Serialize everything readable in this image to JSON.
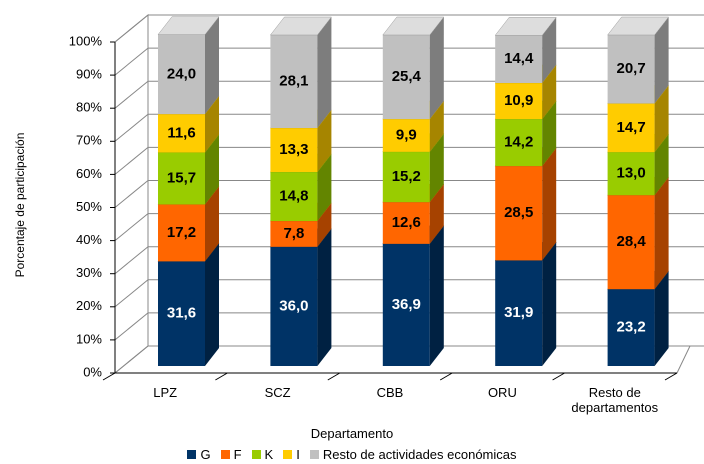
{
  "chart_data": {
    "type": "bar",
    "stacked": true,
    "x_label": "Departamento",
    "y_label": "Porcentaje de participación",
    "categories": [
      "LPZ",
      "SCZ",
      "CBB",
      "ORU",
      "Resto de departamentos"
    ],
    "series": [
      {
        "name": "G",
        "color": "#003366",
        "values": [
          31.6,
          36.0,
          36.9,
          31.9,
          23.2
        ],
        "value_labels": [
          "31,6",
          "36,0",
          "36,9",
          "31,9",
          "23,2"
        ]
      },
      {
        "name": "F",
        "color": "#ff6600",
        "values": [
          17.2,
          7.8,
          12.6,
          28.5,
          28.4
        ],
        "value_labels": [
          "17,2",
          "7,8",
          "12,6",
          "28,5",
          "28,4"
        ]
      },
      {
        "name": "K",
        "color": "#99cc00",
        "values": [
          15.7,
          14.8,
          15.2,
          14.2,
          13.0
        ],
        "value_labels": [
          "15,7",
          "14,8",
          "15,2",
          "14,2",
          "13,0"
        ]
      },
      {
        "name": "I",
        "color": "#ffcc00",
        "values": [
          11.6,
          13.3,
          9.9,
          10.9,
          14.7
        ],
        "value_labels": [
          "11,6",
          "13,3",
          "9,9",
          "10,9",
          "14,7"
        ]
      },
      {
        "name": "Resto de actividades económicas",
        "color": "#c0c0c0",
        "values": [
          24.0,
          28.1,
          25.4,
          14.4,
          20.7
        ],
        "value_labels": [
          "24,0",
          "28,1",
          "25,4",
          "14,4",
          "20,7"
        ]
      }
    ],
    "ylim": [
      0,
      100
    ],
    "yticks": [
      {
        "value": 0,
        "label": "0%"
      },
      {
        "value": 10,
        "label": "10%"
      },
      {
        "value": 20,
        "label": "20%"
      },
      {
        "value": 30,
        "label": "30%"
      },
      {
        "value": 40,
        "label": "40%"
      },
      {
        "value": 50,
        "label": "50%"
      },
      {
        "value": 60,
        "label": "60%"
      },
      {
        "value": 70,
        "label": "70%"
      },
      {
        "value": 80,
        "label": "80%"
      },
      {
        "value": 90,
        "label": "90%"
      },
      {
        "value": 100,
        "label": "100%"
      }
    ],
    "grid": true,
    "legend": "bottom"
  }
}
